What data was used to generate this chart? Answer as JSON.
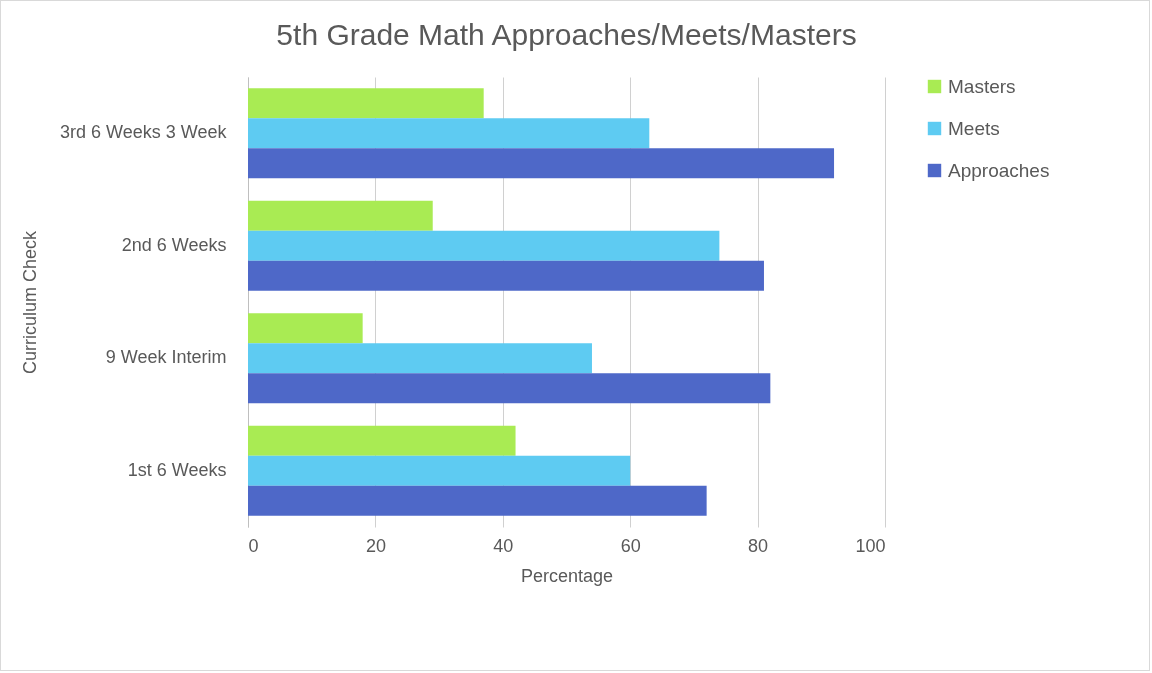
{
  "chart_data": {
    "type": "bar",
    "orientation": "horizontal",
    "title": "5th Grade Math Approaches/Meets/Masters",
    "xlabel": "Percentage",
    "ylabel": "Curriculum Check",
    "categories": [
      "3rd 6 Weeks 3 Week",
      "2nd 6 Weeks",
      "9 Week Interim",
      "1st 6 Weeks"
    ],
    "series": [
      {
        "name": "Masters",
        "color": "#a9eb53",
        "values": [
          37,
          29,
          18,
          42
        ]
      },
      {
        "name": "Meets",
        "color": "#5ecbf2",
        "values": [
          63,
          74,
          54,
          60
        ]
      },
      {
        "name": "Approaches",
        "color": "#4e68c8",
        "values": [
          92,
          81,
          82,
          72
        ]
      }
    ],
    "xlim": [
      0,
      100
    ],
    "xticks": [
      0,
      20,
      40,
      60,
      80,
      100
    ],
    "grid": "x",
    "legend": "right"
  }
}
